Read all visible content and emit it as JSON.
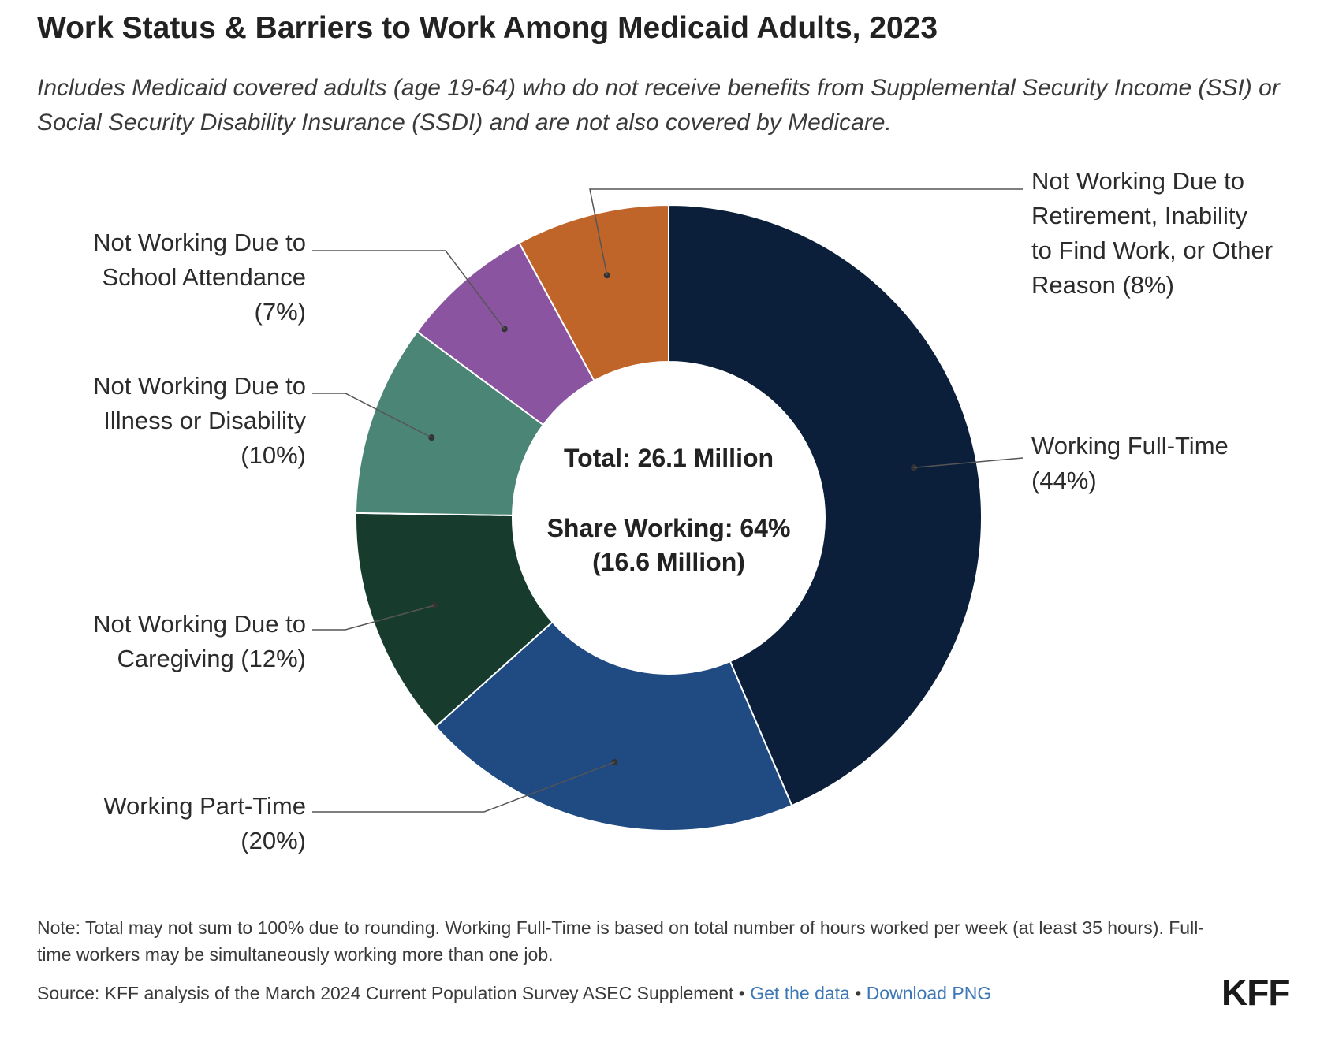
{
  "title": "Work Status & Barriers to Work Among Medicaid Adults, 2023",
  "subtitle": "Includes Medicaid covered adults (age 19-64) who do not receive benefits from Supplemental Security Income (SSI) or Social Security Disability Insurance (SSDI) and are not also covered by Medicare.",
  "center": {
    "total": "Total: 26.1 Million",
    "share_line1": "Share Working: 64%",
    "share_line2": "(16.6 Million)"
  },
  "chart_data": {
    "type": "pie",
    "donut": true,
    "unit": "%",
    "slices": [
      {
        "label": "Working Full-Time",
        "value": 44,
        "display": "(44%)",
        "color": "#0b1f3a"
      },
      {
        "label": "Working Part-Time",
        "value": 20,
        "display": "(20%)",
        "color": "#1f4a82"
      },
      {
        "label": "Not Working Due to Caregiving",
        "value": 12,
        "display": "(12%)",
        "color": "#173c2e"
      },
      {
        "label": "Not Working Due to Illness or Disability",
        "value": 10,
        "display": "(10%)",
        "color": "#4a8575"
      },
      {
        "label": "Not Working Due to School Attendance",
        "value": 7,
        "display": "(7%)",
        "color": "#8a54a0"
      },
      {
        "label": "Not Working Due to Retirement, Inability to Find Work, or Other Reason",
        "value": 8,
        "display": "(8%)",
        "color": "#c0652a"
      }
    ],
    "label_lines": [
      [
        "Working Full-Time",
        "(44%)"
      ],
      [
        "Working Part-Time",
        "(20%)"
      ],
      [
        "Not Working Due to",
        "Caregiving (12%)"
      ],
      [
        "Not Working Due to",
        "Illness or Disability",
        "(10%)"
      ],
      [
        "Not Working Due to",
        "School Attendance",
        "(7%)"
      ],
      [
        "Not Working Due to",
        "Retirement, Inability",
        "to Find Work, or Other",
        "Reason (8%)"
      ]
    ]
  },
  "note": "Note: Total may not sum to 100% due to rounding. Working Full-Time is based on total number of hours worked per week (at least 35 hours). Full-time workers may be simultaneously working more than one job.",
  "source": {
    "text": "Source: KFF analysis of the March 2024 Current Population Survey ASEC Supplement",
    "separator": " • ",
    "get_data": "Get the data",
    "download": "Download PNG"
  },
  "logo": "KFF"
}
